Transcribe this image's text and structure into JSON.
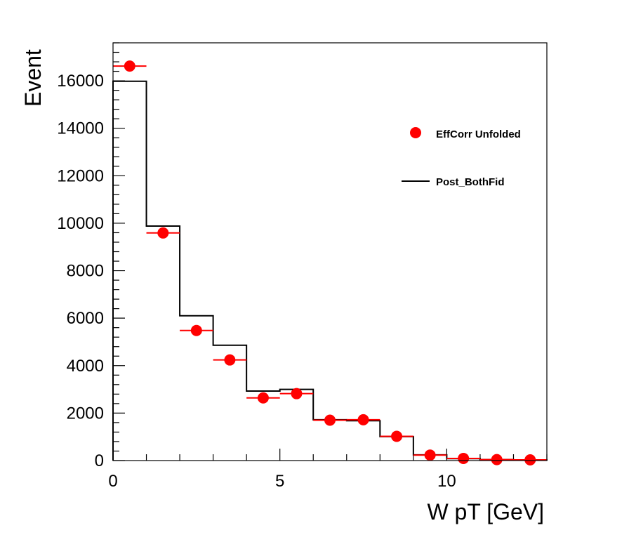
{
  "chart_data": {
    "type": "histogram",
    "xlabel": "W pT [GeV]",
    "ylabel": "Event",
    "xlim": [
      0,
      13
    ],
    "ylim": [
      0,
      17600
    ],
    "x_ticks": [
      0,
      5,
      10
    ],
    "y_ticks": [
      0,
      2000,
      4000,
      6000,
      8000,
      10000,
      12000,
      14000,
      16000
    ],
    "bin_edges": [
      0,
      1,
      2,
      3,
      4,
      5,
      6,
      7,
      8,
      9,
      10,
      11,
      12,
      13
    ],
    "legend_placement": "right",
    "series": [
      {
        "name": "EffCorr Unfolded",
        "style": "markers",
        "color": "#ff0000",
        "values": [
          16620,
          9590,
          5480,
          4240,
          2640,
          2820,
          1700,
          1720,
          1020,
          230,
          90,
          40,
          30
        ]
      },
      {
        "name": "Post_BothFid",
        "style": "step",
        "color": "#000000",
        "values": [
          15980,
          9880,
          6100,
          4860,
          2930,
          3000,
          1720,
          1680,
          1010,
          240,
          80,
          40,
          20
        ]
      }
    ]
  }
}
